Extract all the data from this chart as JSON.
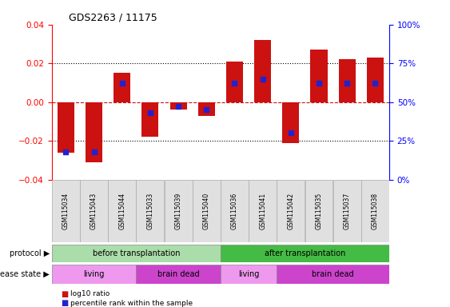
{
  "title": "GDS2263 / 11175",
  "samples": [
    "GSM115034",
    "GSM115043",
    "GSM115044",
    "GSM115033",
    "GSM115039",
    "GSM115040",
    "GSM115036",
    "GSM115041",
    "GSM115042",
    "GSM115035",
    "GSM115037",
    "GSM115038"
  ],
  "log10_ratio": [
    -0.026,
    -0.031,
    0.015,
    -0.018,
    -0.004,
    -0.007,
    0.021,
    0.032,
    -0.021,
    0.027,
    0.022,
    0.023
  ],
  "percentile_rank": [
    18,
    18,
    62,
    43,
    47,
    45,
    62,
    65,
    30,
    62,
    62,
    62
  ],
  "ylim": [
    -0.04,
    0.04
  ],
  "yticks_left": [
    -0.04,
    -0.02,
    0,
    0.02,
    0.04
  ],
  "yticks_right": [
    0,
    25,
    50,
    75,
    100
  ],
  "bar_color": "#cc1111",
  "blue_color": "#2222cc",
  "protocol_before_color": "#aaddaa",
  "protocol_after_color": "#44bb44",
  "disease_living_color": "#ee99ee",
  "disease_brain_color": "#cc44cc",
  "protocol_before_label": "before transplantation",
  "protocol_after_label": "after transplantation",
  "disease_living_label": "living",
  "disease_brain_label": "brain dead",
  "protocol_label": "protocol",
  "disease_label": "disease state",
  "legend_red": "log10 ratio",
  "legend_blue": "percentile rank within the sample"
}
